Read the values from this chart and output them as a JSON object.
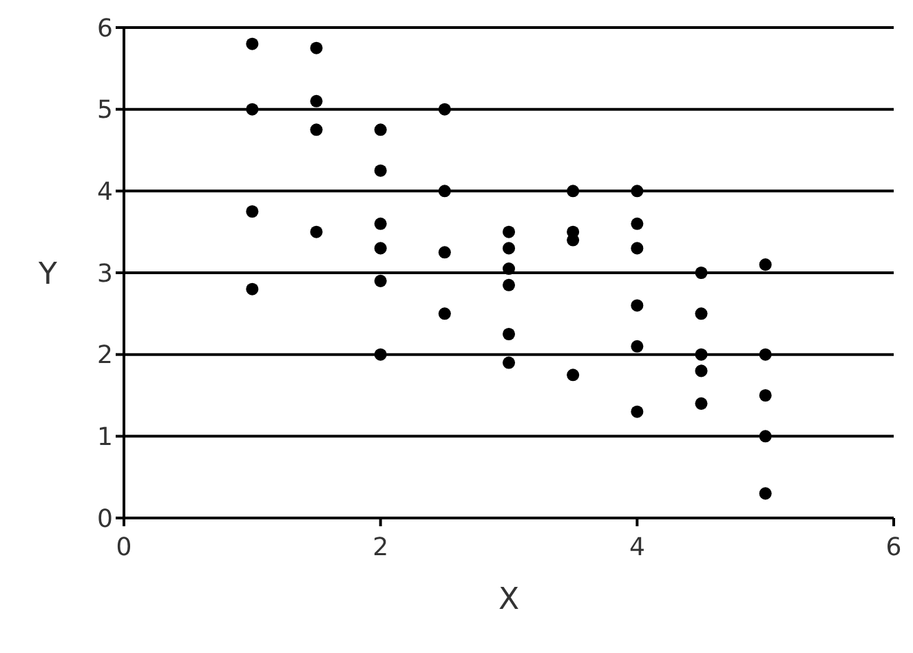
{
  "chart_data": {
    "type": "scatter",
    "xlabel": "X",
    "ylabel": "Y",
    "xlim": [
      0,
      6
    ],
    "xticks": [
      0,
      2,
      4,
      6
    ],
    "ylim": [
      0,
      6
    ],
    "yticks": [
      0,
      1,
      2,
      3,
      4,
      5,
      6
    ],
    "grid": "y",
    "marker": "circle",
    "series": [
      {
        "color": "#000000",
        "x": [
          1,
          1,
          1,
          1,
          1.5,
          1.5,
          1.5,
          1.5,
          2,
          2,
          2,
          2,
          2,
          2,
          2.5,
          2.5,
          2.5,
          2.5,
          3,
          3,
          3,
          3,
          3,
          3,
          3.5,
          3.5,
          3.5,
          3.5,
          4,
          4,
          4,
          4,
          4,
          4,
          4.5,
          4.5,
          4.5,
          4.5,
          4.5,
          5,
          5,
          5,
          5,
          5
        ],
        "values": [
          5.8,
          5,
          3.75,
          2.8,
          5.75,
          5.1,
          4.75,
          3.5,
          4.75,
          4.25,
          3.6,
          3.3,
          2.9,
          2,
          5,
          4,
          3.25,
          2.5,
          3.5,
          3.3,
          3.05,
          2.85,
          2.25,
          1.9,
          4,
          3.5,
          3.4,
          1.75,
          4,
          3.6,
          3.3,
          2.6,
          2.1,
          1.3,
          3,
          2.5,
          2,
          1.8,
          1.4,
          3.1,
          2,
          1.5,
          1,
          0.3
        ]
      }
    ]
  }
}
